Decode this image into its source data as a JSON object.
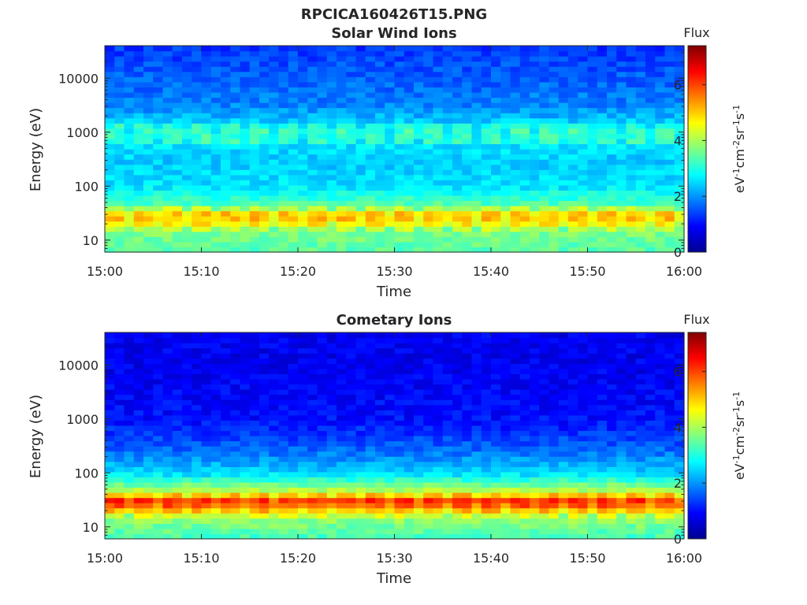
{
  "figure": {
    "title": "RPCICA160426T15.PNG"
  },
  "colorbar": {
    "label": "Flux",
    "unit_text": "eV",
    "unit_parts": [
      {
        "t": "eV",
        "sup": false
      },
      {
        "t": "-1",
        "sup": true
      },
      {
        "t": "cm",
        "sup": false
      },
      {
        "t": "-2",
        "sup": true
      },
      {
        "t": "sr",
        "sup": false
      },
      {
        "t": "-1",
        "sup": true
      },
      {
        "t": "s",
        "sup": false
      },
      {
        "t": "-1",
        "sup": true
      }
    ],
    "ticks": [
      0,
      2,
      4,
      6
    ],
    "range": [
      0,
      7.4
    ],
    "colormap": [
      "#00008f",
      "#0000ff",
      "#0080ff",
      "#00ffff",
      "#80ff80",
      "#ffff00",
      "#ff8000",
      "#ff0000",
      "#800000"
    ]
  },
  "chart_data": [
    {
      "type": "heatmap",
      "title": "Solar Wind Ions",
      "xlabel": "Time",
      "ylabel": "Energy (eV)",
      "x_ticks": [
        "15:00",
        "15:10",
        "15:20",
        "15:30",
        "15:40",
        "15:50",
        "16:00"
      ],
      "x_range": [
        "15:00",
        "16:00"
      ],
      "y_scale": "log",
      "y_ticks": [
        10,
        100,
        1000,
        10000
      ],
      "y_tick_labels": [
        "10",
        "100",
        "1000",
        "10000"
      ],
      "y_range": [
        6,
        40000
      ],
      "colorbar_range": [
        0,
        7.4
      ],
      "profile": [
        {
          "energy": 7,
          "flux": 3.4
        },
        {
          "energy": 15,
          "flux": 3.7
        },
        {
          "energy": 22,
          "flux": 4.8
        },
        {
          "energy": 30,
          "flux": 5.0
        },
        {
          "energy": 45,
          "flux": 3.4
        },
        {
          "energy": 100,
          "flux": 2.6
        },
        {
          "energy": 300,
          "flux": 2.4
        },
        {
          "energy": 1000,
          "flux": 2.8
        },
        {
          "energy": 3000,
          "flux": 1.9
        },
        {
          "energy": 10000,
          "flux": 1.6
        },
        {
          "energy": 40000,
          "flux": 1.3
        }
      ],
      "peak_pulse_minutes": [
        1,
        4,
        7,
        10,
        13,
        16,
        19,
        22,
        25,
        28,
        31,
        34,
        37,
        40,
        43,
        46,
        49,
        52,
        55,
        58
      ],
      "data_gaps_note": ""
    },
    {
      "type": "heatmap",
      "title": "Cometary Ions",
      "xlabel": "Time",
      "ylabel": "Energy (eV)",
      "x_ticks": [
        "15:00",
        "15:10",
        "15:20",
        "15:30",
        "15:40",
        "15:50",
        "16:00"
      ],
      "x_range": [
        "15:00",
        "16:00"
      ],
      "y_scale": "log",
      "y_ticks": [
        10,
        100,
        1000,
        10000
      ],
      "y_tick_labels": [
        "10",
        "100",
        "1000",
        "10000"
      ],
      "y_range": [
        6,
        40000
      ],
      "colorbar_range": [
        0,
        7.4
      ],
      "profile": [
        {
          "energy": 7,
          "flux": 3.3
        },
        {
          "energy": 15,
          "flux": 3.9
        },
        {
          "energy": 22,
          "flux": 5.3
        },
        {
          "energy": 30,
          "flux": 6.2
        },
        {
          "energy": 45,
          "flux": 4.2
        },
        {
          "energy": 100,
          "flux": 2.5
        },
        {
          "energy": 300,
          "flux": 1.6
        },
        {
          "energy": 1000,
          "flux": 1.0
        },
        {
          "energy": 3000,
          "flux": 0.9
        },
        {
          "energy": 10000,
          "flux": 0.8
        },
        {
          "energy": 40000,
          "flux": 0.8
        }
      ],
      "peak_pulse_minutes": [
        1,
        4,
        7,
        10,
        13,
        16,
        19,
        22,
        25,
        28,
        31,
        34,
        37,
        40,
        43,
        46,
        49,
        52,
        55,
        58
      ],
      "data_gaps_note": ""
    }
  ]
}
